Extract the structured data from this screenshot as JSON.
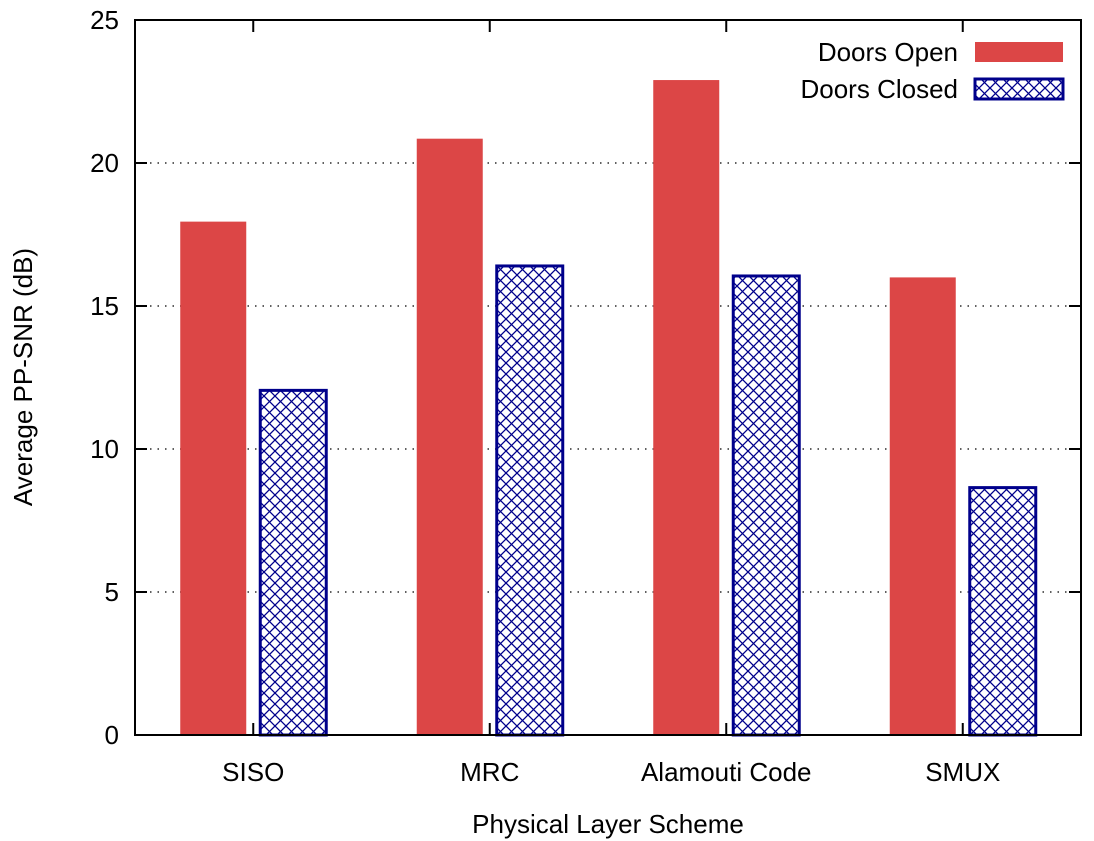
{
  "chart_data": {
    "type": "bar",
    "title": "",
    "xlabel": "Physical Layer Scheme",
    "ylabel": "Average PP-SNR (dB)",
    "ylim": [
      0,
      25
    ],
    "yticks": [
      "0",
      "5",
      "10",
      "15",
      "20",
      "25"
    ],
    "grid": "horizontal dotted",
    "legend_position": "top-right",
    "categories": [
      "SISO",
      "MRC",
      "Alamouti Code",
      "SMUX"
    ],
    "series": [
      {
        "name": "Doors Open",
        "values": [
          17.95,
          20.85,
          22.9,
          16.0
        ],
        "color": "#dc4646",
        "pattern": "solid"
      },
      {
        "name": "Doors Closed",
        "values": [
          12.05,
          16.4,
          16.05,
          8.65
        ],
        "color": "#00008b",
        "pattern": "crosshatch"
      }
    ]
  }
}
